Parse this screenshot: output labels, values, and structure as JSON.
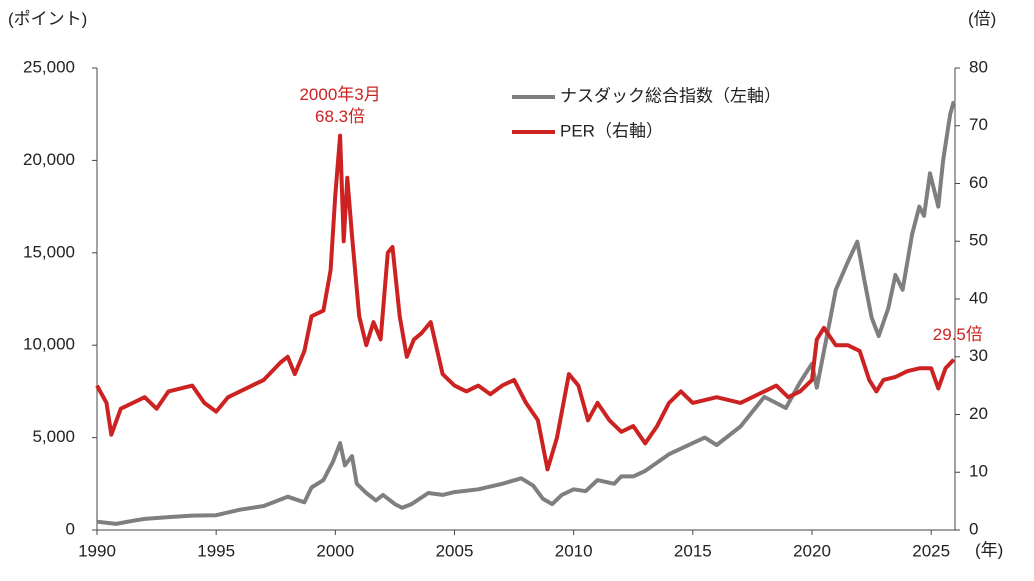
{
  "chart_data": {
    "type": "line",
    "y_label": "(ポイント)",
    "y2_label": "(倍)",
    "x_label": "(年)",
    "xlim": [
      1990,
      2026
    ],
    "xticks": [
      1990,
      1995,
      2000,
      2005,
      2010,
      2015,
      2020,
      2025
    ],
    "ylim": [
      0,
      25000
    ],
    "yticks": [
      0,
      {
        "value": 5000,
        "label": "5,000"
      },
      {
        "value": 10000,
        "label": "10,000"
      },
      {
        "value": 15000,
        "label": "15,000"
      },
      {
        "value": 20000,
        "label": "20,000"
      },
      {
        "value": 25000,
        "label": "25,000"
      }
    ],
    "y2lim": [
      0,
      80
    ],
    "y2ticks": [
      0,
      10,
      20,
      30,
      40,
      50,
      60,
      70,
      80
    ],
    "series": [
      {
        "name": "ナスダック総合指数（左軸）",
        "color": "#7f7f7f",
        "x": [
          1990,
          1990.8,
          1991.5,
          1992,
          1993,
          1994,
          1995,
          1996,
          1997,
          1998,
          1998.7,
          1999,
          1999.5,
          1999.9,
          2000.2,
          2000.4,
          2000.7,
          2000.9,
          2001.3,
          2001.7,
          2002,
          2002.5,
          2002.8,
          2003.2,
          2003.9,
          2004.5,
          2005,
          2006,
          2007,
          2007.8,
          2008.3,
          2008.7,
          2009.1,
          2009.5,
          2010,
          2010.5,
          2011,
          2011.7,
          2012,
          2012.5,
          2013,
          2014,
          2015,
          2015.5,
          2016,
          2017,
          2018,
          2018.9,
          2019.5,
          2020,
          2020.2,
          2020.7,
          2021,
          2021.5,
          2021.9,
          2022.2,
          2022.5,
          2022.8,
          2023.2,
          2023.5,
          2023.8,
          2024.2,
          2024.5,
          2024.7,
          2024.95,
          2025.3,
          2025.5,
          2025.8,
          2025.95
        ],
        "values": [
          450,
          330,
          500,
          600,
          700,
          780,
          800,
          1100,
          1300,
          1800,
          1500,
          2300,
          2700,
          3700,
          4700,
          3500,
          4000,
          2500,
          2000,
          1600,
          1900,
          1400,
          1200,
          1400,
          2000,
          1900,
          2050,
          2200,
          2500,
          2800,
          2400,
          1700,
          1400,
          1900,
          2200,
          2100,
          2700,
          2500,
          2900,
          2900,
          3200,
          4100,
          4700,
          5000,
          4600,
          5600,
          7200,
          6600,
          8000,
          9000,
          7700,
          11000,
          13000,
          14500,
          15600,
          13500,
          11500,
          10500,
          12000,
          13800,
          13000,
          16000,
          17500,
          17000,
          19300,
          17500,
          20000,
          22500,
          23200
        ]
      },
      {
        "name": "PER（右軸）",
        "color": "#cc2222",
        "axis": "y2",
        "x": [
          1990,
          1990.4,
          1990.6,
          1991,
          1992,
          1992.5,
          1993,
          1994,
          1994.5,
          1995,
          1995.5,
          1996,
          1997,
          1997.7,
          1998,
          1998.3,
          1998.7,
          1999,
          1999.5,
          1999.8,
          2000,
          2000.2,
          2000.35,
          2000.5,
          2000.7,
          2001,
          2001.3,
          2001.6,
          2001.9,
          2002.2,
          2002.4,
          2002.7,
          2003,
          2003.3,
          2003.6,
          2004,
          2004.5,
          2005,
          2005.5,
          2006,
          2006.5,
          2007,
          2007.5,
          2008,
          2008.5,
          2008.9,
          2009.3,
          2009.8,
          2010.2,
          2010.6,
          2011,
          2011.5,
          2012,
          2012.5,
          2013,
          2013.5,
          2014,
          2014.5,
          2015,
          2016,
          2017,
          2018,
          2018.5,
          2019,
          2019.5,
          2020,
          2020.2,
          2020.5,
          2021,
          2021.5,
          2022,
          2022.4,
          2022.7,
          2023,
          2023.5,
          2024,
          2024.5,
          2025,
          2025.3,
          2025.6,
          2025.95
        ],
        "values": [
          25,
          22,
          16.5,
          21,
          23,
          21,
          24,
          25,
          22,
          20.5,
          23,
          24,
          26,
          29,
          30,
          27,
          31,
          37,
          38,
          45,
          58,
          68.3,
          50,
          61,
          51,
          37,
          32,
          36,
          33,
          48,
          49,
          37,
          30,
          33,
          34,
          36,
          27,
          25,
          24,
          25,
          23.5,
          25,
          26,
          22,
          19,
          10.5,
          16,
          27,
          25,
          19,
          22,
          19,
          17,
          18,
          15,
          18,
          22,
          24,
          22,
          23,
          22,
          24,
          25,
          23,
          24,
          26,
          33,
          35,
          32,
          32,
          31,
          26,
          24,
          26,
          26.5,
          27.5,
          28,
          28,
          24.5,
          28,
          29.5
        ]
      }
    ],
    "annotations": [
      {
        "text": "2000年3月"
      },
      {
        "text": "68.3倍"
      },
      {
        "text": "29.5倍"
      }
    ]
  }
}
